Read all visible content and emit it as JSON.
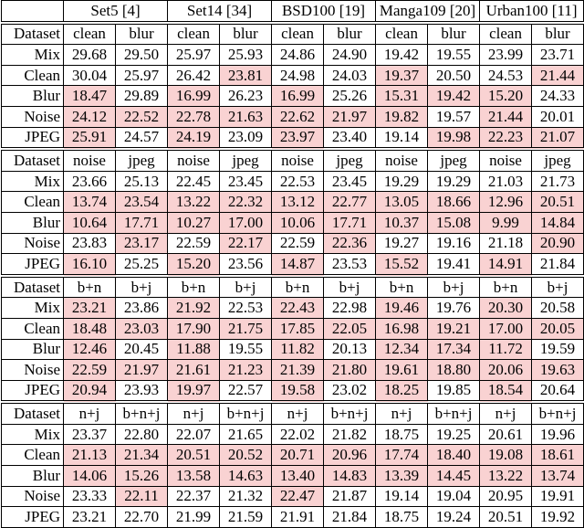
{
  "table": {
    "columns": [
      "Set5 [4]",
      "Set14 [34]",
      "BSD100 [19]",
      "Manga109 [20]",
      "Urban100 [11]"
    ],
    "highlight_color": "#f9d2d2",
    "blocks": [
      {
        "header": [
          "Dataset",
          "clean",
          "blur",
          "clean",
          "blur",
          "clean",
          "blur",
          "clean",
          "blur",
          "clean",
          "blur"
        ],
        "rows": [
          {
            "label": "Mix",
            "cells": [
              "29.68",
              "29.50",
              "25.97",
              "25.93",
              "24.86",
              "24.90",
              "19.42",
              "19.55",
              "23.99",
              "23.71"
            ],
            "highlight": [
              false,
              false,
              false,
              false,
              false,
              false,
              false,
              false,
              false,
              false
            ]
          },
          {
            "label": "Clean",
            "cells": [
              "30.04",
              "25.97",
              "26.42",
              "23.81",
              "24.98",
              "24.03",
              "19.37",
              "20.50",
              "24.53",
              "21.44"
            ],
            "highlight": [
              false,
              false,
              false,
              true,
              false,
              false,
              true,
              false,
              false,
              true
            ]
          },
          {
            "label": "Blur",
            "cells": [
              "18.47",
              "29.89",
              "16.99",
              "26.23",
              "16.99",
              "25.26",
              "15.31",
              "19.42",
              "15.20",
              "24.33"
            ],
            "highlight": [
              true,
              false,
              true,
              false,
              true,
              false,
              true,
              true,
              true,
              false
            ]
          },
          {
            "label": "Noise",
            "cells": [
              "24.12",
              "22.52",
              "22.78",
              "21.63",
              "22.62",
              "21.97",
              "19.82",
              "19.57",
              "21.44",
              "20.01"
            ],
            "highlight": [
              true,
              true,
              true,
              true,
              true,
              true,
              true,
              false,
              true,
              false
            ]
          },
          {
            "label": "JPEG",
            "cells": [
              "25.91",
              "24.57",
              "24.19",
              "23.09",
              "23.97",
              "23.40",
              "19.14",
              "19.98",
              "22.23",
              "21.07"
            ],
            "highlight": [
              true,
              false,
              true,
              false,
              true,
              false,
              false,
              true,
              true,
              true
            ]
          }
        ]
      },
      {
        "header": [
          "Dataset",
          "noise",
          "jpeg",
          "noise",
          "jpeg",
          "noise",
          "jpeg",
          "noise",
          "jpeg",
          "noise",
          "jpeg"
        ],
        "rows": [
          {
            "label": "Mix",
            "cells": [
              "23.66",
              "25.13",
              "22.45",
              "23.45",
              "22.53",
              "23.45",
              "19.29",
              "19.29",
              "21.03",
              "21.73"
            ],
            "highlight": [
              false,
              false,
              false,
              false,
              false,
              false,
              false,
              false,
              false,
              false
            ]
          },
          {
            "label": "Clean",
            "cells": [
              "13.74",
              "23.54",
              "13.22",
              "22.32",
              "13.12",
              "22.77",
              "13.05",
              "18.66",
              "12.96",
              "20.51"
            ],
            "highlight": [
              true,
              true,
              true,
              true,
              true,
              true,
              true,
              true,
              true,
              true
            ]
          },
          {
            "label": "Blur",
            "cells": [
              "10.64",
              "17.71",
              "10.27",
              "17.00",
              "10.06",
              "17.71",
              "10.37",
              "15.08",
              "9.99",
              "14.84"
            ],
            "highlight": [
              true,
              true,
              true,
              true,
              true,
              true,
              true,
              true,
              true,
              true
            ]
          },
          {
            "label": "Noise",
            "cells": [
              "23.83",
              "23.17",
              "22.59",
              "22.17",
              "22.59",
              "22.36",
              "19.27",
              "19.16",
              "21.18",
              "20.90"
            ],
            "highlight": [
              false,
              true,
              false,
              true,
              false,
              true,
              false,
              false,
              false,
              true
            ]
          },
          {
            "label": "JPEG",
            "cells": [
              "16.10",
              "25.25",
              "15.20",
              "23.56",
              "14.87",
              "23.53",
              "15.52",
              "19.41",
              "14.91",
              "21.84"
            ],
            "highlight": [
              true,
              false,
              true,
              false,
              true,
              false,
              true,
              false,
              true,
              false
            ]
          }
        ]
      },
      {
        "header": [
          "Dataset",
          "b+n",
          "b+j",
          "b+n",
          "b+j",
          "b+n",
          "b+j",
          "b+n",
          "b+j",
          "b+n",
          "b+j"
        ],
        "rows": [
          {
            "label": "Mix",
            "cells": [
              "23.21",
              "23.86",
              "21.92",
              "22.53",
              "22.43",
              "22.98",
              "19.46",
              "19.76",
              "20.30",
              "20.58"
            ],
            "highlight": [
              true,
              false,
              true,
              false,
              true,
              false,
              true,
              false,
              true,
              false
            ]
          },
          {
            "label": "Clean",
            "cells": [
              "18.48",
              "23.03",
              "17.90",
              "21.75",
              "17.85",
              "22.05",
              "16.98",
              "19.21",
              "17.00",
              "20.05"
            ],
            "highlight": [
              true,
              true,
              true,
              true,
              true,
              true,
              true,
              true,
              true,
              true
            ]
          },
          {
            "label": "Blur",
            "cells": [
              "12.46",
              "20.45",
              "11.88",
              "19.55",
              "11.82",
              "20.13",
              "12.34",
              "17.34",
              "11.72",
              "19.59"
            ],
            "highlight": [
              true,
              false,
              true,
              false,
              true,
              false,
              true,
              true,
              true,
              false
            ]
          },
          {
            "label": "Noise",
            "cells": [
              "22.59",
              "21.97",
              "21.61",
              "21.23",
              "21.39",
              "21.80",
              "19.61",
              "18.80",
              "20.06",
              "19.63"
            ],
            "highlight": [
              true,
              true,
              true,
              true,
              true,
              true,
              true,
              true,
              true,
              true
            ]
          },
          {
            "label": "JPEG",
            "cells": [
              "20.94",
              "23.93",
              "19.97",
              "22.57",
              "19.58",
              "23.02",
              "18.25",
              "19.85",
              "18.54",
              "20.64"
            ],
            "highlight": [
              true,
              false,
              true,
              false,
              true,
              false,
              true,
              false,
              true,
              false
            ]
          }
        ]
      },
      {
        "header": [
          "Dataset",
          "n+j",
          "b+n+j",
          "n+j",
          "b+n+j",
          "n+j",
          "b+n+j",
          "n+j",
          "b+n+j",
          "n+j",
          "b+n+j"
        ],
        "rows": [
          {
            "label": "Mix",
            "cells": [
              "23.37",
              "22.80",
              "22.07",
              "21.65",
              "22.02",
              "21.82",
              "18.75",
              "19.25",
              "20.61",
              "19.96"
            ],
            "highlight": [
              false,
              false,
              false,
              false,
              false,
              false,
              false,
              false,
              false,
              false
            ]
          },
          {
            "label": "Clean",
            "cells": [
              "21.13",
              "21.34",
              "20.51",
              "20.52",
              "20.71",
              "20.96",
              "17.74",
              "18.40",
              "19.08",
              "18.61"
            ],
            "highlight": [
              true,
              true,
              true,
              true,
              true,
              true,
              true,
              true,
              true,
              true
            ]
          },
          {
            "label": "Blur",
            "cells": [
              "14.06",
              "15.26",
              "13.58",
              "14.63",
              "13.40",
              "14.83",
              "13.39",
              "14.45",
              "13.22",
              "13.74"
            ],
            "highlight": [
              true,
              true,
              true,
              true,
              true,
              true,
              true,
              true,
              true,
              true
            ]
          },
          {
            "label": "Noise",
            "cells": [
              "23.33",
              "22.11",
              "22.37",
              "21.32",
              "22.47",
              "21.87",
              "19.14",
              "19.04",
              "20.95",
              "19.91"
            ],
            "highlight": [
              false,
              true,
              false,
              false,
              true,
              false,
              false,
              false,
              false,
              false
            ]
          },
          {
            "label": "JPEG",
            "cells": [
              "23.21",
              "22.70",
              "21.99",
              "21.59",
              "21.91",
              "21.84",
              "18.75",
              "19.24",
              "20.51",
              "19.92"
            ],
            "highlight": [
              false,
              false,
              false,
              false,
              false,
              false,
              false,
              false,
              false,
              false
            ]
          }
        ]
      }
    ]
  }
}
